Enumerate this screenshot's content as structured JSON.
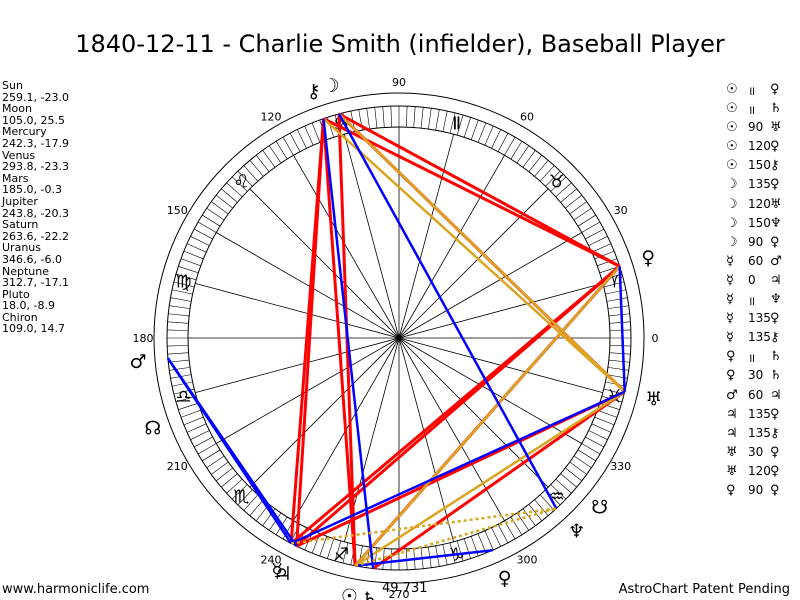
{
  "title": "1840-12-11 - Charlie Smith (infielder), Baseball Player",
  "footer": {
    "left": "www.harmoniclife.com",
    "right": "AstroChart Patent Pending",
    "mc": "49,731"
  },
  "planet_list": [
    {
      "name": "Sun",
      "coords": "259.1, -23.0"
    },
    {
      "name": "Moon",
      "coords": "105.0, 25.5"
    },
    {
      "name": "Mercury",
      "coords": "242.3, -17.9"
    },
    {
      "name": "Venus",
      "coords": "293.8, -23.3"
    },
    {
      "name": "Mars",
      "coords": "185.0, -0.3"
    },
    {
      "name": "Jupiter",
      "coords": "243.8, -20.3"
    },
    {
      "name": "Saturn",
      "coords": "263.6, -22.2"
    },
    {
      "name": "Uranus",
      "coords": "346.6, -6.0"
    },
    {
      "name": "Neptune",
      "coords": "312.7, -17.1"
    },
    {
      "name": "Pluto",
      "coords": "18.0, -8.9"
    },
    {
      "name": "Chiron",
      "coords": "109.0, 14.7"
    }
  ],
  "aspect_list": [
    {
      "p1": "☉",
      "angle": "॥",
      "p2": "♀"
    },
    {
      "p1": "☉",
      "angle": "॥",
      "p2": "♄"
    },
    {
      "p1": "☉",
      "angle": "90",
      "p2": "♅"
    },
    {
      "p1": "☉",
      "angle": "120",
      "p2": "♀"
    },
    {
      "p1": "☉",
      "angle": "150",
      "p2": "⚷"
    },
    {
      "p1": "☽",
      "angle": "135",
      "p2": "♀"
    },
    {
      "p1": "☽",
      "angle": "120",
      "p2": "♅"
    },
    {
      "p1": "☽",
      "angle": "150",
      "p2": "♆"
    },
    {
      "p1": "☽",
      "angle": "90",
      "p2": "♀"
    },
    {
      "p1": "☿",
      "angle": "60",
      "p2": "♂"
    },
    {
      "p1": "☿",
      "angle": "0",
      "p2": "♃"
    },
    {
      "p1": "☿",
      "angle": "॥",
      "p2": "♆"
    },
    {
      "p1": "☿",
      "angle": "135",
      "p2": "♀"
    },
    {
      "p1": "☿",
      "angle": "135",
      "p2": "⚷"
    },
    {
      "p1": "♀",
      "angle": "॥",
      "p2": "♄"
    },
    {
      "p1": "♀",
      "angle": "30",
      "p2": "♄"
    },
    {
      "p1": "♂",
      "angle": "60",
      "p2": "♃"
    },
    {
      "p1": "♃",
      "angle": "135",
      "p2": "♀"
    },
    {
      "p1": "♃",
      "angle": "135",
      "p2": "⚷"
    },
    {
      "p1": "♅",
      "angle": "30",
      "p2": "♀"
    },
    {
      "p1": "♅",
      "angle": "120",
      "p2": "♀"
    },
    {
      "p1": "♀",
      "angle": "90",
      "p2": "♀"
    }
  ],
  "chart_data": {
    "type": "radial-wheel",
    "degree_labels": [
      0,
      30,
      60,
      90,
      120,
      150,
      180,
      210,
      240,
      270,
      300,
      330
    ],
    "signs": [
      {
        "name": "Aries",
        "glyph": "♈",
        "longitude": 0
      },
      {
        "name": "Taurus",
        "glyph": "♉",
        "longitude": 30
      },
      {
        "name": "Gemini",
        "glyph": "Ⅱ",
        "longitude": 60
      },
      {
        "name": "Cancer",
        "glyph": "♋",
        "longitude": 90
      },
      {
        "name": "Leo",
        "glyph": "♌",
        "longitude": 120
      },
      {
        "name": "Virgo",
        "glyph": "♍",
        "longitude": 150
      },
      {
        "name": "Libra",
        "glyph": "♎",
        "longitude": 180
      },
      {
        "name": "Scorpio",
        "glyph": "♏",
        "longitude": 210
      },
      {
        "name": "Sagittarius",
        "glyph": "♐",
        "longitude": 240
      },
      {
        "name": "Capricorn",
        "glyph": "♑",
        "longitude": 270
      },
      {
        "name": "Aquarius",
        "glyph": "♒",
        "longitude": 300
      },
      {
        "name": "Pisces",
        "glyph": "♓",
        "longitude": 330
      }
    ],
    "points": [
      {
        "name": "Sun",
        "glyph": "☉",
        "longitude": 259.1
      },
      {
        "name": "Moon",
        "glyph": "☽",
        "longitude": 105.0
      },
      {
        "name": "Mercury",
        "glyph": "☿",
        "longitude": 242.3
      },
      {
        "name": "Venus",
        "glyph": "♀",
        "longitude": 293.8
      },
      {
        "name": "Mars",
        "glyph": "♂",
        "longitude": 185.0
      },
      {
        "name": "Jupiter",
        "glyph": "♃",
        "longitude": 243.8
      },
      {
        "name": "Saturn",
        "glyph": "♄",
        "longitude": 263.6
      },
      {
        "name": "Uranus",
        "glyph": "♅",
        "longitude": 346.6
      },
      {
        "name": "Neptune",
        "glyph": "♆",
        "longitude": 312.7
      },
      {
        "name": "Pluto",
        "glyph": "♀",
        "longitude": 18.0
      },
      {
        "name": "Chiron",
        "glyph": "⚷",
        "longitude": 109.0
      },
      {
        "name": "Node",
        "glyph": "☊",
        "longitude": 200.0
      },
      {
        "name": "South Node",
        "glyph": "☋",
        "longitude": 320.0
      }
    ],
    "aspect_lines": [
      {
        "a": "Sun",
        "b": "Moon",
        "color": "#ff0000"
      },
      {
        "a": "Sun",
        "b": "Chiron",
        "color": "#ff0000"
      },
      {
        "a": "Sun",
        "b": "Pluto",
        "color": "#ff0000"
      },
      {
        "a": "Moon",
        "b": "Pluto",
        "color": "#ff0000"
      },
      {
        "a": "Moon",
        "b": "Uranus",
        "color": "#ff0000"
      },
      {
        "a": "Chiron",
        "b": "Pluto",
        "color": "#ff0000"
      },
      {
        "a": "Chiron",
        "b": "Jupiter",
        "color": "#ff0000"
      },
      {
        "a": "Chiron",
        "b": "Mercury",
        "color": "#ff0000"
      },
      {
        "a": "Mercury",
        "b": "Pluto",
        "color": "#ff0000"
      },
      {
        "a": "Jupiter",
        "b": "Pluto",
        "color": "#ff0000"
      },
      {
        "a": "Jupiter",
        "b": "Uranus",
        "color": "#ff0000"
      },
      {
        "a": "Saturn",
        "b": "Uranus",
        "color": "#ff0000"
      },
      {
        "a": "Sun",
        "b": "Uranus",
        "color": "#daa520"
      },
      {
        "a": "Moon",
        "b": "Uranus",
        "color": "#daa520"
      },
      {
        "a": "Chiron",
        "b": "Uranus",
        "color": "#daa520"
      },
      {
        "a": "Sun",
        "b": "Pluto",
        "color": "#daa520"
      },
      {
        "a": "Moon",
        "b": "Neptune",
        "color": "#0000ff"
      },
      {
        "a": "Chiron",
        "b": "Saturn",
        "color": "#0000ff"
      },
      {
        "a": "Sun",
        "b": "Venus",
        "color": "#0000ff"
      },
      {
        "a": "Mars",
        "b": "Jupiter",
        "color": "#0000ff"
      },
      {
        "a": "Mars",
        "b": "Mercury",
        "color": "#0000ff"
      },
      {
        "a": "Pluto",
        "b": "Uranus",
        "color": "#0000ff"
      },
      {
        "a": "Mercury",
        "b": "Uranus",
        "color": "#0000ff"
      },
      {
        "a": "Mercury",
        "b": "Neptune",
        "color": "#daa520",
        "dotted": true
      },
      {
        "a": "Sun",
        "b": "Neptune",
        "color": "#daa520",
        "dotted": true
      }
    ]
  }
}
